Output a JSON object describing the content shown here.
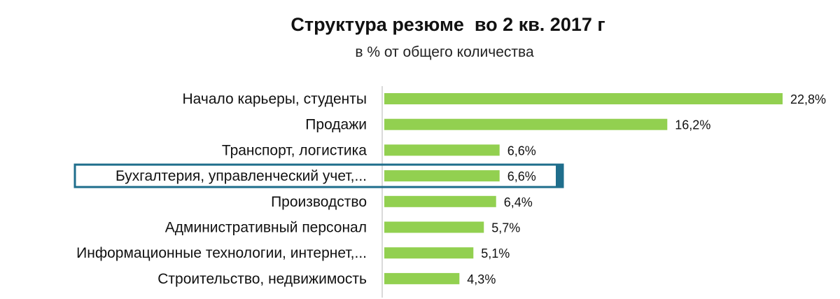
{
  "chart_data": {
    "type": "bar",
    "orientation": "horizontal",
    "title": "Структура резюме  во 2 кв. 2017 г",
    "subtitle": "в % от общего количества",
    "categories": [
      "Начало карьеры, студенты",
      "Продажи",
      "Транспорт, логистика",
      "Бухгалтерия, управленческий учет,...",
      "Производство",
      "Административный персонал",
      "Информационные технологии, интернет,...",
      "Строительство, недвижимость"
    ],
    "values": [
      22.8,
      16.2,
      6.6,
      6.6,
      6.4,
      5.7,
      5.1,
      4.3
    ],
    "value_labels": [
      "22,8%",
      "16,2%",
      "6,6%",
      "6,6%",
      "6,4%",
      "5,7%",
      "5,1%",
      "4,3%"
    ],
    "highlighted_index": 3,
    "xlim": [
      0,
      22.8
    ],
    "grid": false,
    "bar_color": "#92D050",
    "highlight_border_color": "#1F6E8C"
  }
}
